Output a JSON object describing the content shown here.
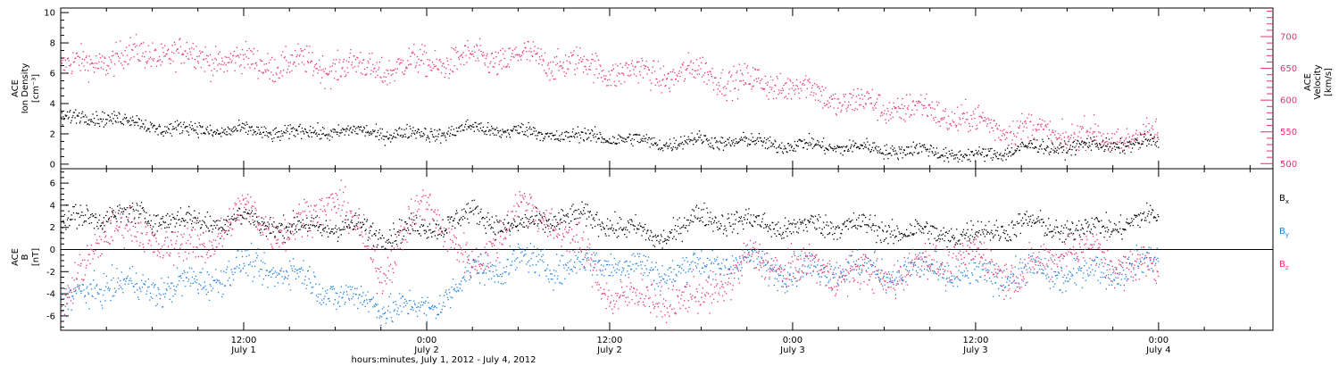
{
  "chart_data": [
    {
      "type": "scatter",
      "panel": "plasma",
      "left_axis": {
        "label_lines": [
          "ACE",
          "Ion Density",
          "[cm⁻³]"
        ],
        "ylim": [
          -0.3,
          10.3
        ],
        "ticks": [
          "0",
          "2",
          "4",
          "6",
          "8",
          "10"
        ],
        "tick_values": [
          0,
          2,
          4,
          6,
          8,
          10
        ]
      },
      "right_axis": {
        "label_lines": [
          "ACE",
          "Velocity",
          "[km/s]"
        ],
        "ylim": [
          492,
          745
        ],
        "ticks": [
          "500",
          "550",
          "600",
          "650",
          "700"
        ],
        "tick_values": [
          500,
          550,
          600,
          650,
          700
        ],
        "color": "#e8336b"
      },
      "series": [
        {
          "axis": "left",
          "color": "#000000",
          "x_hours": [
            0,
            3,
            6,
            9,
            12,
            15,
            18,
            21,
            24,
            27,
            30,
            33,
            36,
            39,
            42,
            45,
            48,
            51,
            54,
            57,
            60,
            63,
            66,
            69,
            72
          ],
          "values": [
            3.0,
            3.2,
            2.5,
            2.3,
            2.2,
            2.1,
            2.2,
            2.1,
            2.0,
            2.4,
            2.2,
            1.9,
            1.8,
            1.4,
            1.6,
            1.5,
            1.3,
            1.2,
            1.0,
            0.9,
            0.5,
            1.1,
            1.2,
            1.3,
            1.4
          ]
        },
        {
          "axis": "right",
          "color": "#e8336b",
          "x_hours": [
            0,
            3,
            6,
            9,
            12,
            15,
            18,
            21,
            24,
            27,
            30,
            33,
            36,
            39,
            42,
            45,
            48,
            51,
            54,
            57,
            60,
            63,
            66,
            69,
            72
          ],
          "values": [
            650,
            665,
            675,
            670,
            660,
            658,
            655,
            650,
            660,
            665,
            668,
            660,
            648,
            640,
            645,
            628,
            625,
            600,
            590,
            585,
            565,
            555,
            545,
            540,
            545
          ]
        }
      ]
    },
    {
      "type": "scatter",
      "panel": "magnetic field",
      "left_axis": {
        "label_lines": [
          "ACE",
          "B",
          "[nT]"
        ],
        "ylim": [
          -7.3,
          7.3
        ],
        "ticks": [
          "-6",
          "-4",
          "-2",
          "0",
          "2",
          "4",
          "6"
        ],
        "tick_values": [
          -6,
          -4,
          -2,
          0,
          2,
          4,
          6
        ]
      },
      "zero_line": 0,
      "series": [
        {
          "name": "Bx",
          "color": "#000000",
          "x_hours": [
            0,
            3,
            6,
            9,
            12,
            15,
            18,
            21,
            24,
            27,
            30,
            33,
            36,
            39,
            42,
            45,
            48,
            51,
            54,
            57,
            60,
            63,
            66,
            69,
            72
          ],
          "values": [
            2.5,
            3.2,
            3.0,
            2.5,
            2.8,
            2.0,
            2.2,
            1.5,
            2.0,
            3.2,
            2.0,
            3.0,
            2.5,
            1.0,
            3.0,
            2.5,
            2.0,
            2.4,
            1.8,
            1.5,
            1.4,
            2.4,
            1.8,
            2.2,
            3.0
          ]
        },
        {
          "name": "By",
          "color": "#1f7fe0",
          "x_hours": [
            0,
            3,
            6,
            9,
            12,
            15,
            18,
            21,
            24,
            27,
            30,
            33,
            36,
            39,
            42,
            45,
            48,
            51,
            54,
            57,
            60,
            63,
            66,
            69,
            72
          ],
          "values": [
            -5.0,
            -3.0,
            -3.5,
            -3.0,
            -1.5,
            -2.0,
            -4.0,
            -5.0,
            -5.5,
            -2.0,
            -1.0,
            -1.5,
            -1.0,
            -2.0,
            -1.5,
            -1.0,
            -2.0,
            -1.5,
            -2.0,
            -1.8,
            -2.5,
            -2.0,
            -2.2,
            -1.8,
            -1.0
          ]
        },
        {
          "name": "Bz",
          "color": "#e8336b",
          "x_hours": [
            0,
            3,
            6,
            9,
            12,
            15,
            18,
            21,
            24,
            27,
            30,
            33,
            36,
            39,
            42,
            45,
            48,
            51,
            54,
            57,
            60,
            63,
            66,
            69,
            72
          ],
          "values": [
            -6.0,
            2.5,
            1.0,
            0.0,
            3.5,
            1.5,
            5.0,
            -2.0,
            4.5,
            -2.0,
            4.0,
            2.0,
            -4.0,
            -4.5,
            -4.5,
            -1.0,
            -1.5,
            -2.0,
            -2.5,
            -1.0,
            -0.5,
            -2.5,
            0.5,
            -1.0,
            -2.0
          ]
        }
      ],
      "legend_position": "right"
    }
  ],
  "x_axis": {
    "ticks": [
      {
        "hour": 12,
        "time": "12:00",
        "date": "July 1"
      },
      {
        "hour": 24,
        "time": "0:00",
        "date": "July 2"
      },
      {
        "hour": 36,
        "time": "12:00",
        "date": "July 2"
      },
      {
        "hour": 48,
        "time": "0:00",
        "date": "July 3"
      },
      {
        "hour": 60,
        "time": "12:00",
        "date": "July 3"
      },
      {
        "hour": 72,
        "time": "0:00",
        "date": "July 4"
      }
    ],
    "title": "hours:minutes, July  1, 2012 - July  4, 2012",
    "range_hours": [
      0,
      79.5
    ]
  },
  "legend": [
    {
      "main": "B",
      "sub": "x",
      "color": "#000000"
    },
    {
      "main": "B",
      "sub": "y",
      "color": "#1f7fe0"
    },
    {
      "main": "B",
      "sub": "z",
      "color": "#e8336b"
    }
  ]
}
